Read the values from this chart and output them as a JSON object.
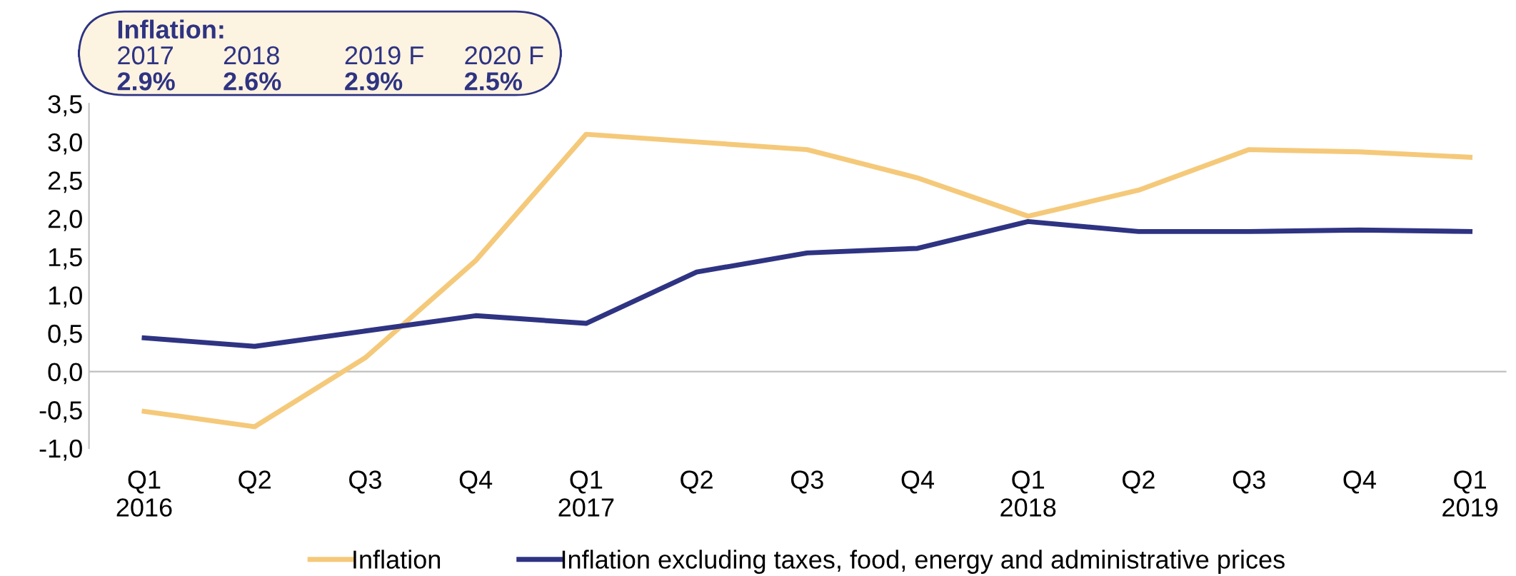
{
  "chart_data": {
    "type": "line",
    "categories": [
      "Q1\n2016",
      "Q2",
      "Q3",
      "Q4",
      "Q1\n2017",
      "Q2",
      "Q3",
      "Q4",
      "Q1\n2018",
      "Q2",
      "Q3",
      "Q4",
      "Q1\n2019"
    ],
    "series": [
      {
        "name": "Inflation",
        "color": "#f5c97a",
        "values": [
          -0.52,
          -0.72,
          0.18,
          1.45,
          3.1,
          3.0,
          2.9,
          2.53,
          2.03,
          2.37,
          2.9,
          2.87,
          2.8
        ]
      },
      {
        "name": "Inflation excluding taxes, food, energy and administrative prices",
        "color": "#2e3382",
        "values": [
          0.44,
          0.33,
          0.53,
          0.73,
          0.63,
          1.3,
          1.55,
          1.61,
          1.96,
          1.83,
          1.83,
          1.85,
          1.83
        ]
      }
    ],
    "ylim": [
      -1,
      3.5
    ],
    "yticks": [
      {
        "value": -1,
        "label": "-1,0"
      },
      {
        "value": -0.5,
        "label": "-0,5"
      },
      {
        "value": 0,
        "label": "0,0"
      },
      {
        "value": 0.5,
        "label": "0,5"
      },
      {
        "value": 1,
        "label": "1,0"
      },
      {
        "value": 1.5,
        "label": "1,5"
      },
      {
        "value": 2,
        "label": "2,0"
      },
      {
        "value": 2.5,
        "label": "2,5"
      },
      {
        "value": 3,
        "label": "3,0"
      },
      {
        "value": 3.5,
        "label": "3,5"
      }
    ],
    "ref_lines": [
      {
        "axis": "y",
        "value": 0,
        "color": "#bfbfbf"
      }
    ],
    "annotations": [
      "Inflation:",
      "2017",
      "2018",
      "2019 F",
      "2020 F",
      "2.9%",
      "2.6%",
      "2.9%",
      "2.5%"
    ],
    "grid": false,
    "legend": "bottom",
    "marker": "none",
    "line_style": "solid"
  }
}
